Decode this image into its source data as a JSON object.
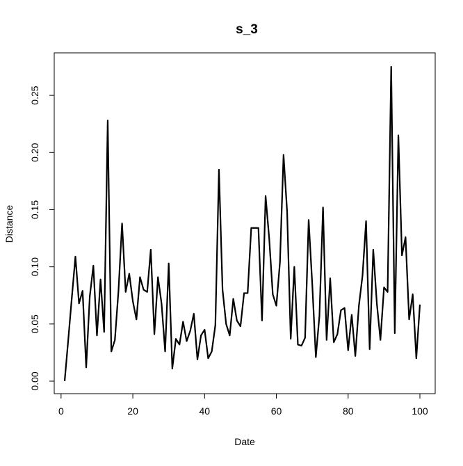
{
  "chart_data": {
    "type": "line",
    "title": "s_3",
    "xlabel": "Date",
    "ylabel": "Distance",
    "xlim": [
      1,
      100
    ],
    "ylim": [
      0,
      0.275
    ],
    "xticks": [
      0,
      20,
      40,
      60,
      80,
      100
    ],
    "xtick_labels": [
      "0",
      "20",
      "40",
      "60",
      "80",
      "100"
    ],
    "yticks": [
      0.0,
      0.05,
      0.1,
      0.15,
      0.2,
      0.25
    ],
    "ytick_labels": [
      "0.00",
      "0.05",
      "0.10",
      "0.15",
      "0.20",
      "0.25"
    ],
    "grid": false,
    "line_color": "#000000",
    "series": [
      {
        "x": [
          1,
          2,
          3,
          4,
          5,
          6,
          7,
          8,
          9,
          10,
          11,
          12,
          13,
          14,
          15,
          16,
          17,
          18,
          19,
          20,
          21,
          22,
          23,
          24,
          25,
          26,
          27,
          28,
          29,
          30,
          31,
          32,
          33,
          34,
          35,
          36,
          37,
          38,
          39,
          40,
          41,
          42,
          43,
          44,
          45,
          46,
          47,
          48,
          49,
          50,
          51,
          52,
          53,
          54,
          55,
          56,
          57,
          58,
          59,
          60,
          61,
          62,
          63,
          64,
          65,
          66,
          67,
          68,
          69,
          70,
          71,
          72,
          73,
          74,
          75,
          76,
          77,
          78,
          79,
          80,
          81,
          82,
          83,
          84,
          85,
          86,
          87,
          88,
          89,
          90,
          91,
          92,
          93,
          94,
          95,
          96,
          97,
          98,
          99,
          100
        ],
        "values": [
          0.0,
          0.036,
          0.073,
          0.109,
          0.068,
          0.079,
          0.012,
          0.074,
          0.101,
          0.04,
          0.089,
          0.043,
          0.228,
          0.026,
          0.036,
          0.079,
          0.138,
          0.078,
          0.094,
          0.07,
          0.054,
          0.091,
          0.08,
          0.078,
          0.115,
          0.041,
          0.091,
          0.068,
          0.026,
          0.103,
          0.011,
          0.037,
          0.032,
          0.052,
          0.035,
          0.044,
          0.059,
          0.019,
          0.04,
          0.045,
          0.02,
          0.026,
          0.049,
          0.185,
          0.08,
          0.05,
          0.04,
          0.072,
          0.053,
          0.048,
          0.077,
          0.077,
          0.134,
          0.134,
          0.134,
          0.053,
          0.162,
          0.125,
          0.076,
          0.066,
          0.104,
          0.198,
          0.148,
          0.037,
          0.1,
          0.032,
          0.031,
          0.038,
          0.141,
          0.085,
          0.021,
          0.057,
          0.152,
          0.036,
          0.09,
          0.034,
          0.041,
          0.062,
          0.064,
          0.027,
          0.058,
          0.022,
          0.066,
          0.092,
          0.14,
          0.028,
          0.115,
          0.068,
          0.036,
          0.082,
          0.078,
          0.275,
          0.042,
          0.215,
          0.11,
          0.126,
          0.054,
          0.076,
          0.02,
          0.067
        ]
      }
    ]
  }
}
